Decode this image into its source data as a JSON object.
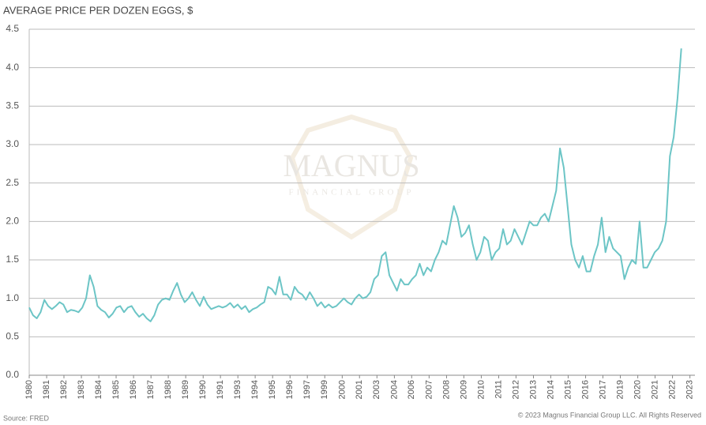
{
  "chart_data": {
    "type": "line",
    "title": "AVERAGE PRICE PER DOZEN EGGS, $",
    "source": "Source: FRED",
    "copyright": "© 2023 Magnus Financial Group LLC. All Rights Reserved",
    "watermark": {
      "name": "MAGNUS",
      "tagline": "FINANCIAL GROUP"
    },
    "grid": true,
    "ylim": [
      0,
      4.5
    ],
    "yticks": [
      {
        "value": 0,
        "label": "0.0"
      },
      0.5,
      {
        "value": 1,
        "label": "1.0"
      },
      1.5,
      {
        "value": 2,
        "label": "2.0"
      },
      2.5,
      {
        "value": 3,
        "label": "3.0"
      },
      3.5,
      {
        "value": 4,
        "label": "4.0"
      },
      4.5
    ],
    "xlim": [
      1980,
      2023.9
    ],
    "xticks": [
      {
        "value": 1980,
        "label": "1980"
      },
      {
        "value": 1981.15,
        "label": "1981"
      },
      {
        "value": 1982.29,
        "label": "1982"
      },
      {
        "value": 1983.44,
        "label": "1983"
      },
      {
        "value": 1984.59,
        "label": "1984"
      },
      {
        "value": 1985.73,
        "label": "1985"
      },
      {
        "value": 1986.88,
        "label": "1986"
      },
      {
        "value": 1988.03,
        "label": "1987"
      },
      {
        "value": 1989.17,
        "label": "1988"
      },
      {
        "value": 1990.32,
        "label": "1989"
      },
      {
        "value": 1991.47,
        "label": "1990"
      },
      {
        "value": 1992.61,
        "label": "1991"
      },
      {
        "value": 1993.76,
        "label": "1993"
      },
      {
        "value": 1994.9,
        "label": "1994"
      },
      {
        "value": 1996.05,
        "label": "1995"
      },
      {
        "value": 1997.2,
        "label": "1996"
      },
      {
        "value": 1998.34,
        "label": "1997"
      },
      {
        "value": 1999.49,
        "label": "1999"
      },
      {
        "value": 2000.64,
        "label": "2000"
      },
      {
        "value": 2001.78,
        "label": "2001"
      },
      {
        "value": 2002.93,
        "label": "2003"
      },
      {
        "value": 2004.08,
        "label": "2004"
      },
      {
        "value": 2005.22,
        "label": "2006"
      },
      {
        "value": 2006.37,
        "label": "2007"
      },
      {
        "value": 2007.52,
        "label": "2008"
      },
      {
        "value": 2008.66,
        "label": "2009"
      },
      {
        "value": 2009.81,
        "label": "2010"
      },
      {
        "value": 2010.96,
        "label": "2011"
      },
      {
        "value": 2012.1,
        "label": "2012"
      },
      {
        "value": 2013.25,
        "label": "2013"
      },
      {
        "value": 2014.39,
        "label": "2014"
      },
      {
        "value": 2015.54,
        "label": "2015"
      },
      {
        "value": 2016.69,
        "label": "2016"
      },
      {
        "value": 2017.83,
        "label": "2017"
      },
      {
        "value": 2018.98,
        "label": "2019"
      },
      {
        "value": 2020.13,
        "label": "2020"
      },
      {
        "value": 2021.27,
        "label": "2021"
      },
      {
        "value": 2022.42,
        "label": "2022"
      },
      {
        "value": 2023.57,
        "label": "2023"
      }
    ],
    "x": [
      1980,
      1980.25,
      1980.5,
      1980.75,
      1981,
      1981.25,
      1981.5,
      1981.75,
      1982,
      1982.25,
      1982.5,
      1982.75,
      1983,
      1983.25,
      1983.5,
      1983.75,
      1984,
      1984.25,
      1984.5,
      1984.75,
      1985,
      1985.25,
      1985.5,
      1985.75,
      1986,
      1986.25,
      1986.5,
      1986.75,
      1987,
      1987.25,
      1987.5,
      1987.75,
      1988,
      1988.25,
      1988.5,
      1988.75,
      1989,
      1989.25,
      1989.5,
      1989.75,
      1990,
      1990.25,
      1990.5,
      1990.75,
      1991,
      1991.25,
      1991.5,
      1991.75,
      1992,
      1992.25,
      1992.5,
      1992.75,
      1993,
      1993.25,
      1993.5,
      1993.75,
      1994,
      1994.25,
      1994.5,
      1994.75,
      1995,
      1995.25,
      1995.5,
      1995.75,
      1996,
      1996.25,
      1996.5,
      1996.75,
      1997,
      1997.25,
      1997.5,
      1997.75,
      1998,
      1998.25,
      1998.5,
      1998.75,
      1999,
      1999.25,
      1999.5,
      1999.75,
      2000,
      2000.25,
      2000.5,
      2000.75,
      2001,
      2001.25,
      2001.5,
      2001.75,
      2002,
      2002.25,
      2002.5,
      2002.75,
      2003,
      2003.25,
      2003.5,
      2003.75,
      2004,
      2004.25,
      2004.5,
      2004.75,
      2005,
      2005.25,
      2005.5,
      2005.75,
      2006,
      2006.25,
      2006.5,
      2006.75,
      2007,
      2007.25,
      2007.5,
      2007.75,
      2008,
      2008.25,
      2008.5,
      2008.75,
      2009,
      2009.25,
      2009.5,
      2009.75,
      2010,
      2010.25,
      2010.5,
      2010.75,
      2011,
      2011.25,
      2011.5,
      2011.75,
      2012,
      2012.25,
      2012.5,
      2012.75,
      2013,
      2013.25,
      2013.5,
      2013.75,
      2014,
      2014.25,
      2014.5,
      2014.75,
      2015,
      2015.25,
      2015.5,
      2015.75,
      2016,
      2016.25,
      2016.5,
      2016.75,
      2017,
      2017.25,
      2017.5,
      2017.75,
      2018,
      2018.25,
      2018.5,
      2018.75,
      2019,
      2019.25,
      2019.5,
      2019.75,
      2020,
      2020.25,
      2020.5,
      2020.75,
      2021,
      2021.25,
      2021.5,
      2021.75,
      2022,
      2022.25,
      2022.5,
      2022.75,
      2023
    ],
    "series": [
      {
        "color": "#6cc5c6",
        "values": [
          0.88,
          0.78,
          0.74,
          0.82,
          0.98,
          0.9,
          0.86,
          0.9,
          0.95,
          0.92,
          0.82,
          0.85,
          0.84,
          0.82,
          0.88,
          1.0,
          1.3,
          1.15,
          0.9,
          0.85,
          0.82,
          0.75,
          0.8,
          0.88,
          0.9,
          0.82,
          0.88,
          0.9,
          0.82,
          0.76,
          0.8,
          0.74,
          0.7,
          0.78,
          0.92,
          0.98,
          1.0,
          0.98,
          1.1,
          1.2,
          1.05,
          0.95,
          1.0,
          1.08,
          0.98,
          0.9,
          1.02,
          0.92,
          0.86,
          0.88,
          0.9,
          0.88,
          0.9,
          0.94,
          0.88,
          0.92,
          0.86,
          0.9,
          0.82,
          0.86,
          0.88,
          0.92,
          0.95,
          1.15,
          1.12,
          1.05,
          1.28,
          1.05,
          1.05,
          0.98,
          1.15,
          1.08,
          1.05,
          0.98,
          1.08,
          1.0,
          0.9,
          0.95,
          0.88,
          0.92,
          0.88,
          0.9,
          0.95,
          1.0,
          0.95,
          0.92,
          1.0,
          1.05,
          1.0,
          1.02,
          1.08,
          1.25,
          1.3,
          1.55,
          1.6,
          1.3,
          1.2,
          1.1,
          1.25,
          1.18,
          1.18,
          1.25,
          1.3,
          1.45,
          1.3,
          1.4,
          1.35,
          1.5,
          1.6,
          1.75,
          1.7,
          1.95,
          2.2,
          2.05,
          1.8,
          1.85,
          1.95,
          1.7,
          1.5,
          1.6,
          1.8,
          1.75,
          1.5,
          1.6,
          1.65,
          1.9,
          1.7,
          1.75,
          1.9,
          1.8,
          1.7,
          1.85,
          2.0,
          1.95,
          1.95,
          2.05,
          2.1,
          2.0,
          2.2,
          2.4,
          2.95,
          2.7,
          2.2,
          1.7,
          1.5,
          1.4,
          1.55,
          1.35,
          1.35,
          1.55,
          1.7,
          2.05,
          1.6,
          1.8,
          1.65,
          1.6,
          1.55,
          1.25,
          1.4,
          1.5,
          1.45,
          2.0,
          1.4,
          1.4,
          1.5,
          1.6,
          1.65,
          1.75,
          2.0,
          2.85,
          3.1,
          3.6,
          4.25
        ]
      }
    ]
  }
}
